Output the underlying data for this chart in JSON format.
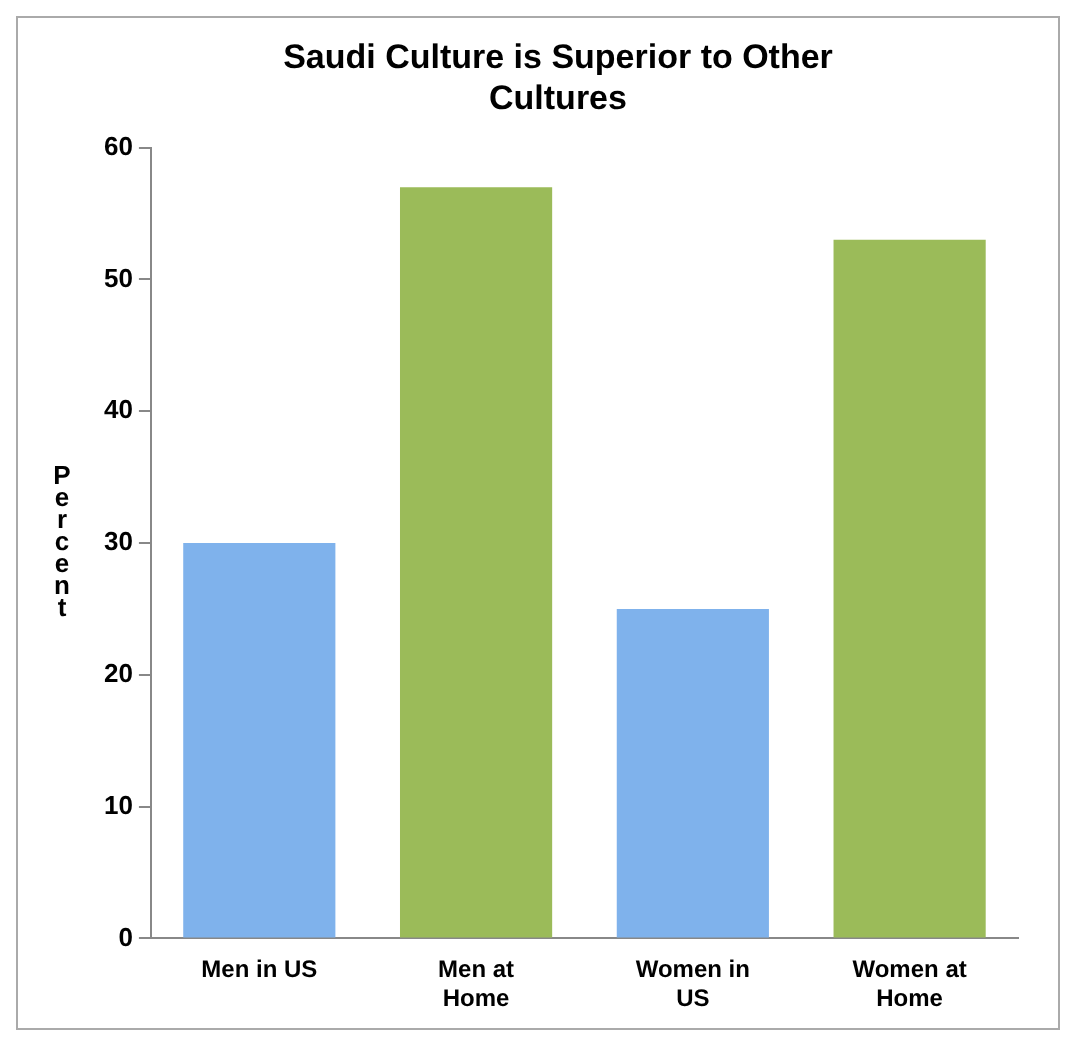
{
  "chart_data": {
    "type": "bar",
    "title": "Saudi Culture is Superior to Other Cultures",
    "ylabel": "Percent",
    "categories": [
      "Men in US",
      "Men at Home",
      "Women in US",
      "Women at Home"
    ],
    "values": [
      30,
      57,
      25,
      53
    ],
    "colors": [
      "#7fb2ec",
      "#9bbb59",
      "#7fb2ec",
      "#9bbb59"
    ],
    "ylim": [
      0,
      60
    ],
    "yticks": [
      0,
      10,
      20,
      30,
      40,
      50,
      60
    ],
    "grid": false,
    "legend": false
  }
}
